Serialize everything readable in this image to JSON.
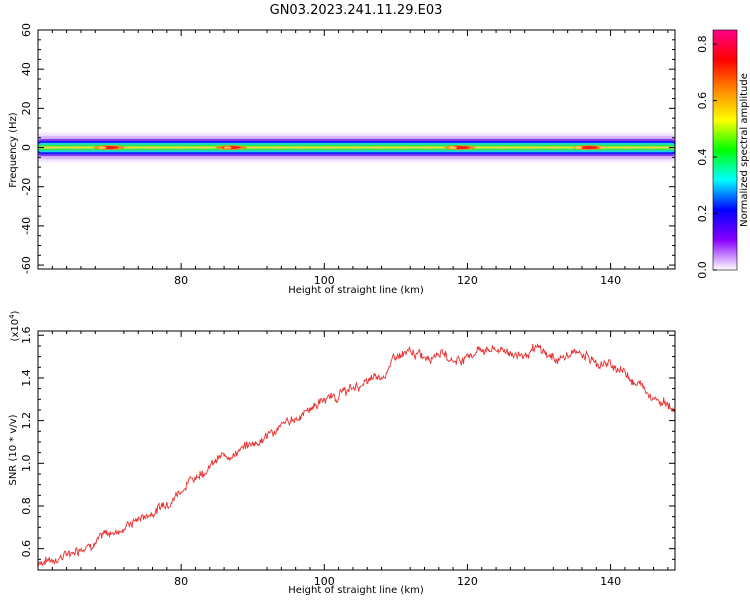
{
  "figure": {
    "title": "GN03.2023.241.11.29.E03"
  },
  "chart_data": [
    {
      "type": "heatmap",
      "xlabel": "Height of straight line (km)",
      "ylabel": "Frequency (Hz)",
      "xlim": [
        60,
        149
      ],
      "ylim": [
        -62,
        60
      ],
      "xticks": [
        80,
        100,
        120,
        140
      ],
      "yticks": [
        -60,
        -40,
        -20,
        0,
        20,
        40,
        60
      ],
      "band": {
        "center_hz": 0,
        "halfwidth_hz": 4,
        "hot_spots_km": [
          70,
          87,
          119,
          137
        ]
      },
      "colorbar": {
        "label": "Normalized spectral amplitude",
        "range": [
          0,
          0.85
        ],
        "ticks": [
          "0.0",
          "0.2",
          "0.4",
          "0.6",
          "0.8"
        ],
        "colors": [
          "#ffffff",
          "#8800ff",
          "#0000ff",
          "#00ffff",
          "#00ff00",
          "#ffff00",
          "#ff8800",
          "#ff0000",
          "#ff0088"
        ]
      }
    },
    {
      "type": "line",
      "xlabel": "Height of straight line (km)",
      "ylabel": "SNR (10 * v/v)",
      "multiplier": "(x10",
      "multiplier_exp": "4",
      "multiplier_close": ")",
      "xlim": [
        60,
        149
      ],
      "ylim": [
        0.5,
        1.62
      ],
      "xticks": [
        80,
        100,
        120,
        140
      ],
      "yticks": [
        "0.6",
        "0.8",
        "1.0",
        "1.2",
        "1.4",
        "1.6"
      ],
      "line_color": "#e83030",
      "series": [
        {
          "x": [
            60,
            62,
            64,
            66,
            68,
            70,
            72,
            74,
            76,
            78,
            80,
            82,
            84,
            86,
            88,
            90,
            92,
            94,
            96,
            98,
            100,
            102,
            104,
            106,
            108,
            110,
            112,
            114,
            116,
            118,
            120,
            122,
            124,
            126,
            128,
            130,
            132,
            134,
            136,
            138,
            140,
            142,
            144,
            146,
            148,
            149
          ],
          "y": [
            0.54,
            0.55,
            0.57,
            0.61,
            0.64,
            0.67,
            0.7,
            0.74,
            0.77,
            0.82,
            0.88,
            0.94,
            0.99,
            1.03,
            1.06,
            1.09,
            1.13,
            1.17,
            1.21,
            1.26,
            1.3,
            1.32,
            1.35,
            1.38,
            1.4,
            1.5,
            1.51,
            1.5,
            1.53,
            1.48,
            1.5,
            1.54,
            1.53,
            1.52,
            1.51,
            1.53,
            1.49,
            1.5,
            1.52,
            1.47,
            1.46,
            1.43,
            1.37,
            1.32,
            1.28,
            1.25
          ]
        }
      ]
    }
  ]
}
